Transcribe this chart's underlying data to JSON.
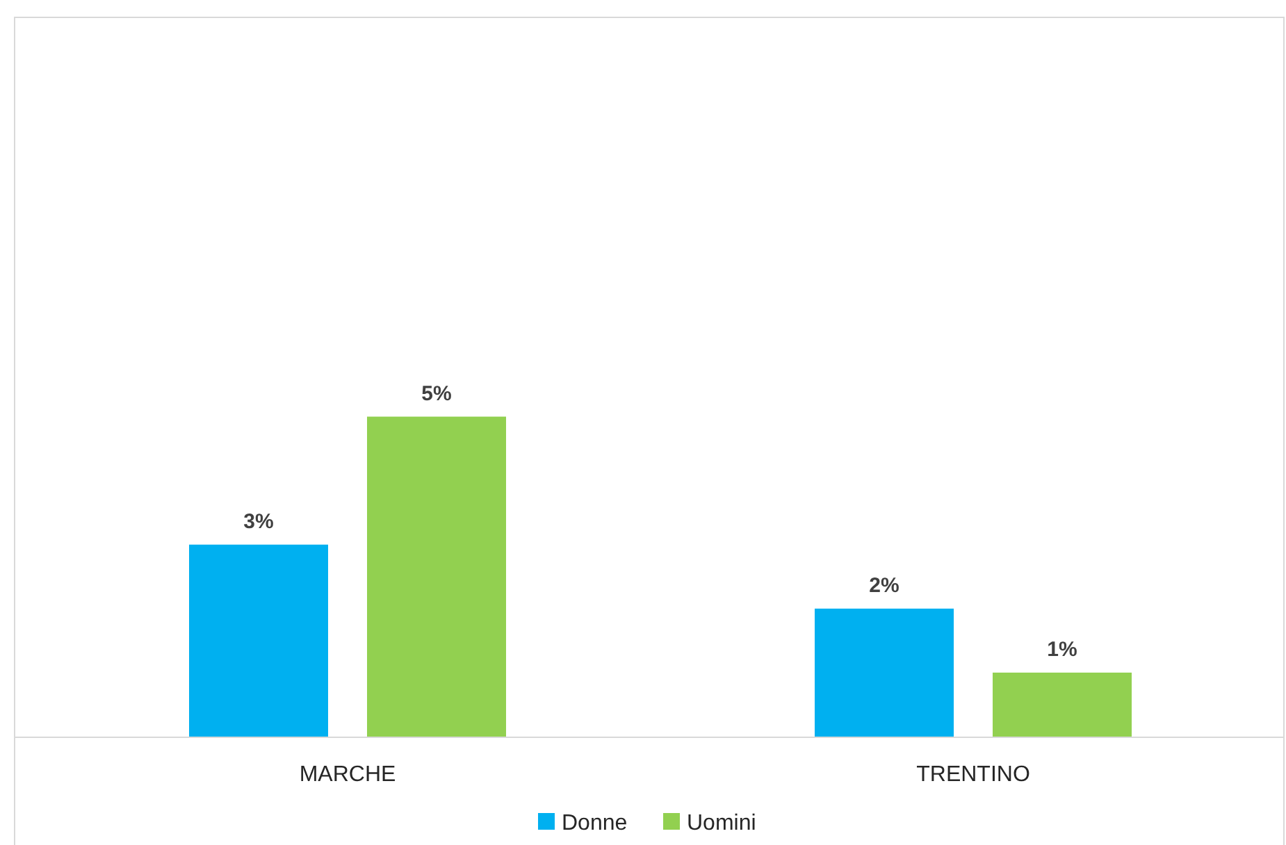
{
  "chart_data": {
    "type": "bar",
    "categories": [
      "MARCHE",
      "TRENTINO"
    ],
    "series": [
      {
        "name": "Donne",
        "color": "#00b0f0",
        "values": [
          3,
          2
        ],
        "value_labels": [
          "3%",
          "2%"
        ]
      },
      {
        "name": "Uomini",
        "color": "#92d050",
        "values": [
          5,
          1
        ],
        "value_labels": [
          "5%",
          "1%"
        ]
      }
    ],
    "legend": "bottom"
  }
}
